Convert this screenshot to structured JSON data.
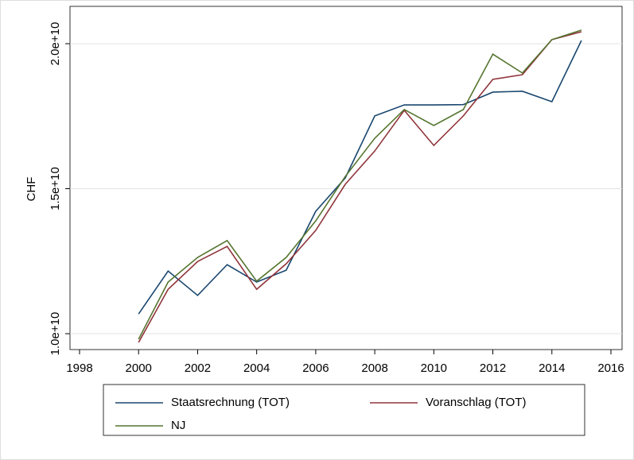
{
  "chart_data": {
    "type": "line",
    "ylabel": "CHF",
    "x": [
      2000,
      2001,
      2002,
      2003,
      2004,
      2005,
      2006,
      2007,
      2008,
      2009,
      2010,
      2011,
      2012,
      2013,
      2014,
      2015
    ],
    "series": [
      {
        "name": "Staatsrechnung (TOT)",
        "color": "#1a476f",
        "values": [
          10680000000,
          12160000000,
          11320000000,
          12380000000,
          11780000000,
          12190000000,
          14220000000,
          15370000000,
          17510000000,
          17890000000,
          17890000000,
          17900000000,
          18330000000,
          18360000000,
          18000000000,
          20110000000
        ]
      },
      {
        "name": "Voranschlag (TOT)",
        "color": "#90353b",
        "values": [
          9700000000,
          11530000000,
          12490000000,
          13010000000,
          11530000000,
          12410000000,
          13560000000,
          15150000000,
          16300000000,
          17700000000,
          16490000000,
          17510000000,
          18770000000,
          18930000000,
          20140000000,
          20410000000
        ]
      },
      {
        "name": "NJ",
        "color": "#55752f",
        "values": [
          9810000000,
          11780000000,
          12630000000,
          13210000000,
          11810000000,
          12630000000,
          13890000000,
          15420000000,
          16740000000,
          17730000000,
          17180000000,
          17730000000,
          19640000000,
          18990000000,
          20140000000,
          20470000000
        ]
      }
    ],
    "xlim": [
      1998,
      2016
    ],
    "xticks": [
      1998,
      2000,
      2002,
      2004,
      2006,
      2008,
      2010,
      2012,
      2014,
      2016
    ],
    "ylim": [
      10000000000,
      20000000000
    ],
    "yticks": [
      {
        "value": 10000000000,
        "label": "1.0e+10"
      },
      {
        "value": 15000000000,
        "label": "1.5e+10"
      },
      {
        "value": 20000000000,
        "label": "2.0e+10"
      }
    ],
    "grid": true,
    "legend": "bottom"
  }
}
